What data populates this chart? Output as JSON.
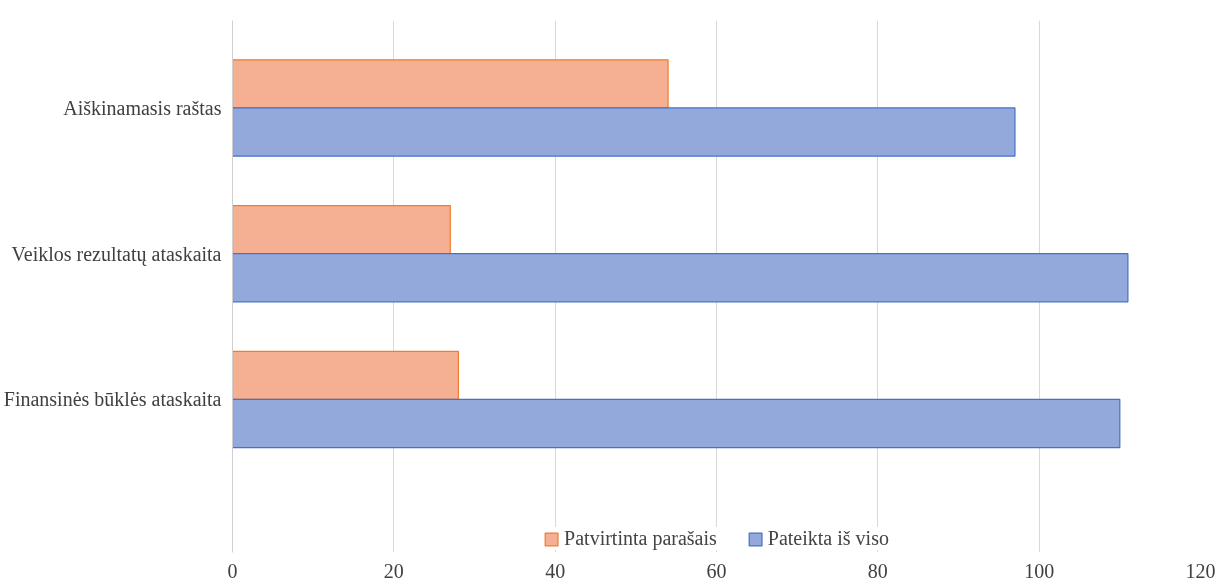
{
  "chart_data": {
    "type": "bar",
    "orientation": "horizontal",
    "categories": [
      "Aiškinamasis raštas",
      "Veiklos rezultatų ataskaita",
      "Finansinės būklės ataskaita"
    ],
    "series": [
      {
        "name": "Patvirtinta parašais",
        "color": "#f5b093",
        "values": [
          54,
          27,
          28
        ]
      },
      {
        "name": "Pateikta iš viso",
        "color": "#93a9dc",
        "values": [
          97,
          111,
          110
        ]
      }
    ],
    "xlim": [
      0,
      120
    ],
    "xticks": [
      0,
      20,
      40,
      60,
      80,
      100,
      120
    ],
    "grid": "x",
    "legend": "bottom"
  }
}
